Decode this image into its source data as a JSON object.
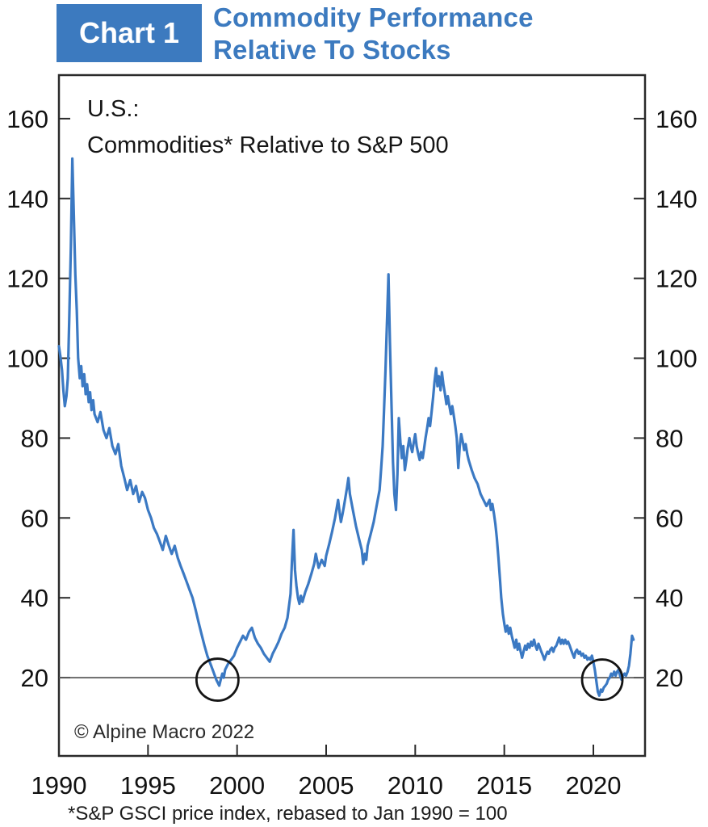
{
  "header": {
    "chart_label": "Chart 1",
    "title_line1": "Commodity Performance",
    "title_line2": "Relative To Stocks"
  },
  "chart": {
    "subtitle_line1": "U.S.:",
    "subtitle_line2": "Commodities* Relative to S&P 500",
    "copyright": "© Alpine Macro 2022",
    "footnote": "*S&P GSCI price index, rebased to Jan 1990 = 100"
  },
  "colors": {
    "accent_blue": "#3c7abf",
    "line_blue": "#3b79c3",
    "axis": "#2a2a2a",
    "reference_line": "#5a5a5a",
    "annotation_circle": "#141414"
  },
  "chart_data": {
    "type": "line",
    "title": "U.S.: Commodities* Relative to S&P 500",
    "xlabel": "",
    "ylabel": "",
    "x_ticks": [
      1990,
      1995,
      2000,
      2005,
      2010,
      2015,
      2020
    ],
    "y_ticks": [
      20,
      40,
      60,
      80,
      100,
      120,
      140,
      160
    ],
    "x_range": [
      1990,
      2022.9
    ],
    "y_range": [
      0.4,
      170.9
    ],
    "grid": "off",
    "reference_line_y": 20,
    "annotations": [
      {
        "shape": "circle",
        "x": 1998.9,
        "y": 19.5,
        "radius_px": 26,
        "label": "late-1990s low"
      },
      {
        "shape": "circle",
        "x": 2020.5,
        "y": 19.5,
        "radius_px": 25,
        "label": "2020-21 low"
      }
    ],
    "series": [
      {
        "name": "S&P GSCI price index relative to S&P 500 (Jan 1990 = 100)",
        "points": [
          [
            1990.0,
            103
          ],
          [
            1990.08,
            100.5
          ],
          [
            1990.17,
            97
          ],
          [
            1990.25,
            92
          ],
          [
            1990.33,
            88
          ],
          [
            1990.42,
            90.5
          ],
          [
            1990.5,
            95
          ],
          [
            1990.58,
            110
          ],
          [
            1990.67,
            128
          ],
          [
            1990.75,
            150
          ],
          [
            1990.83,
            137
          ],
          [
            1990.92,
            121
          ],
          [
            1991.0,
            112
          ],
          [
            1991.08,
            100
          ],
          [
            1991.17,
            95
          ],
          [
            1991.25,
            98
          ],
          [
            1991.33,
            93
          ],
          [
            1991.42,
            96
          ],
          [
            1991.5,
            91
          ],
          [
            1991.58,
            93.5
          ],
          [
            1991.67,
            89
          ],
          [
            1991.75,
            91.5
          ],
          [
            1991.83,
            87
          ],
          [
            1991.92,
            89.5
          ],
          [
            1992.0,
            86
          ],
          [
            1992.17,
            84
          ],
          [
            1992.33,
            86.5
          ],
          [
            1992.5,
            82
          ],
          [
            1992.67,
            80
          ],
          [
            1992.83,
            82.5
          ],
          [
            1993.0,
            78
          ],
          [
            1993.17,
            76
          ],
          [
            1993.33,
            78.5
          ],
          [
            1993.5,
            73
          ],
          [
            1993.67,
            70
          ],
          [
            1993.83,
            67
          ],
          [
            1994.0,
            69.5
          ],
          [
            1994.17,
            66
          ],
          [
            1994.33,
            68
          ],
          [
            1994.5,
            64
          ],
          [
            1994.67,
            66.5
          ],
          [
            1994.83,
            65
          ],
          [
            1995.0,
            62
          ],
          [
            1995.17,
            60
          ],
          [
            1995.33,
            57.5
          ],
          [
            1995.5,
            56
          ],
          [
            1995.67,
            54
          ],
          [
            1995.83,
            52
          ],
          [
            1996.0,
            55.5
          ],
          [
            1996.17,
            53
          ],
          [
            1996.33,
            51
          ],
          [
            1996.5,
            53
          ],
          [
            1996.67,
            50
          ],
          [
            1996.83,
            48
          ],
          [
            1997.0,
            46
          ],
          [
            1997.17,
            44
          ],
          [
            1997.33,
            42
          ],
          [
            1997.5,
            40
          ],
          [
            1997.67,
            37
          ],
          [
            1997.83,
            34
          ],
          [
            1998.0,
            31
          ],
          [
            1998.17,
            28
          ],
          [
            1998.33,
            25.5
          ],
          [
            1998.5,
            23.5
          ],
          [
            1998.67,
            21.5
          ],
          [
            1998.83,
            19.5
          ],
          [
            1999.0,
            18
          ],
          [
            1999.08,
            19.5
          ],
          [
            1999.17,
            21
          ],
          [
            1999.25,
            20
          ],
          [
            1999.33,
            22
          ],
          [
            1999.5,
            23.5
          ],
          [
            1999.67,
            24.5
          ],
          [
            1999.83,
            25.5
          ],
          [
            2000.0,
            27.5
          ],
          [
            2000.17,
            29
          ],
          [
            2000.33,
            30.5
          ],
          [
            2000.5,
            29.5
          ],
          [
            2000.67,
            31.5
          ],
          [
            2000.83,
            32.5
          ],
          [
            2001.0,
            30
          ],
          [
            2001.17,
            28.5
          ],
          [
            2001.33,
            27.5
          ],
          [
            2001.5,
            26
          ],
          [
            2001.67,
            25
          ],
          [
            2001.83,
            24
          ],
          [
            2002.0,
            26
          ],
          [
            2002.17,
            27.5
          ],
          [
            2002.33,
            29
          ],
          [
            2002.5,
            31
          ],
          [
            2002.67,
            32.5
          ],
          [
            2002.83,
            35
          ],
          [
            2003.0,
            41
          ],
          [
            2003.08,
            49
          ],
          [
            2003.17,
            57
          ],
          [
            2003.25,
            47
          ],
          [
            2003.33,
            43
          ],
          [
            2003.42,
            40
          ],
          [
            2003.5,
            38.5
          ],
          [
            2003.58,
            40.5
          ],
          [
            2003.67,
            39
          ],
          [
            2003.83,
            41.5
          ],
          [
            2004.0,
            43.5
          ],
          [
            2004.17,
            46
          ],
          [
            2004.33,
            48.5
          ],
          [
            2004.42,
            51
          ],
          [
            2004.58,
            47.5
          ],
          [
            2004.75,
            49.5
          ],
          [
            2004.92,
            48
          ],
          [
            2005.0,
            50.5
          ],
          [
            2005.17,
            53.5
          ],
          [
            2005.33,
            56.5
          ],
          [
            2005.5,
            60
          ],
          [
            2005.67,
            64.5
          ],
          [
            2005.75,
            61.5
          ],
          [
            2005.83,
            59
          ],
          [
            2005.92,
            61
          ],
          [
            2006.0,
            63
          ],
          [
            2006.17,
            67.5
          ],
          [
            2006.25,
            70
          ],
          [
            2006.33,
            66
          ],
          [
            2006.5,
            62
          ],
          [
            2006.67,
            58
          ],
          [
            2006.83,
            55
          ],
          [
            2007.0,
            52
          ],
          [
            2007.08,
            48.5
          ],
          [
            2007.17,
            51
          ],
          [
            2007.25,
            49.5
          ],
          [
            2007.33,
            53
          ],
          [
            2007.5,
            56
          ],
          [
            2007.67,
            59
          ],
          [
            2007.83,
            63
          ],
          [
            2008.0,
            67
          ],
          [
            2008.08,
            72
          ],
          [
            2008.17,
            78
          ],
          [
            2008.25,
            87
          ],
          [
            2008.33,
            97
          ],
          [
            2008.42,
            110
          ],
          [
            2008.5,
            121
          ],
          [
            2008.58,
            104
          ],
          [
            2008.67,
            88
          ],
          [
            2008.75,
            74
          ],
          [
            2008.83,
            66
          ],
          [
            2008.92,
            62
          ],
          [
            2009.0,
            71
          ],
          [
            2009.08,
            85
          ],
          [
            2009.17,
            79
          ],
          [
            2009.25,
            75
          ],
          [
            2009.33,
            78
          ],
          [
            2009.42,
            72
          ],
          [
            2009.5,
            74.5
          ],
          [
            2009.58,
            77.5
          ],
          [
            2009.67,
            80
          ],
          [
            2009.75,
            78
          ],
          [
            2009.83,
            76.5
          ],
          [
            2009.92,
            79
          ],
          [
            2010.0,
            81
          ],
          [
            2010.08,
            78
          ],
          [
            2010.17,
            76
          ],
          [
            2010.25,
            74.5
          ],
          [
            2010.33,
            76.5
          ],
          [
            2010.42,
            75
          ],
          [
            2010.5,
            77.5
          ],
          [
            2010.58,
            80
          ],
          [
            2010.67,
            82.5
          ],
          [
            2010.75,
            85
          ],
          [
            2010.83,
            83
          ],
          [
            2010.92,
            86.5
          ],
          [
            2011.0,
            90
          ],
          [
            2011.08,
            94
          ],
          [
            2011.17,
            97.5
          ],
          [
            2011.25,
            93
          ],
          [
            2011.33,
            95.5
          ],
          [
            2011.42,
            92
          ],
          [
            2011.5,
            96.5
          ],
          [
            2011.58,
            93.5
          ],
          [
            2011.67,
            91
          ],
          [
            2011.75,
            88.5
          ],
          [
            2011.83,
            90.5
          ],
          [
            2011.92,
            88
          ],
          [
            2012.0,
            86
          ],
          [
            2012.08,
            88
          ],
          [
            2012.17,
            85.5
          ],
          [
            2012.25,
            83
          ],
          [
            2012.33,
            80
          ],
          [
            2012.42,
            72.5
          ],
          [
            2012.5,
            78
          ],
          [
            2012.58,
            81
          ],
          [
            2012.67,
            79
          ],
          [
            2012.75,
            77
          ],
          [
            2012.83,
            78.5
          ],
          [
            2012.92,
            76
          ],
          [
            2013.0,
            74.5
          ],
          [
            2013.17,
            72
          ],
          [
            2013.33,
            70
          ],
          [
            2013.5,
            68.5
          ],
          [
            2013.67,
            66
          ],
          [
            2013.83,
            64.5
          ],
          [
            2014.0,
            63
          ],
          [
            2014.17,
            64.5
          ],
          [
            2014.25,
            62
          ],
          [
            2014.33,
            63.5
          ],
          [
            2014.42,
            61
          ],
          [
            2014.5,
            58.5
          ],
          [
            2014.58,
            55
          ],
          [
            2014.67,
            50
          ],
          [
            2014.75,
            45
          ],
          [
            2014.83,
            40
          ],
          [
            2014.92,
            36
          ],
          [
            2015.0,
            33.5
          ],
          [
            2015.08,
            31.5
          ],
          [
            2015.17,
            33
          ],
          [
            2015.25,
            31
          ],
          [
            2015.33,
            32.5
          ],
          [
            2015.42,
            30.5
          ],
          [
            2015.5,
            29
          ],
          [
            2015.58,
            27.5
          ],
          [
            2015.67,
            29.5
          ],
          [
            2015.75,
            27
          ],
          [
            2015.83,
            28.5
          ],
          [
            2015.92,
            26.5
          ],
          [
            2016.0,
            25
          ],
          [
            2016.08,
            26.5
          ],
          [
            2016.17,
            28
          ],
          [
            2016.25,
            27
          ],
          [
            2016.33,
            28.5
          ],
          [
            2016.42,
            27.5
          ],
          [
            2016.5,
            29
          ],
          [
            2016.58,
            28
          ],
          [
            2016.67,
            29.5
          ],
          [
            2016.75,
            28
          ],
          [
            2016.83,
            27
          ],
          [
            2016.92,
            28.5
          ],
          [
            2017.0,
            27.5
          ],
          [
            2017.08,
            26.5
          ],
          [
            2017.17,
            25.5
          ],
          [
            2017.25,
            24.5
          ],
          [
            2017.33,
            25.5
          ],
          [
            2017.42,
            26.5
          ],
          [
            2017.5,
            26
          ],
          [
            2017.58,
            27
          ],
          [
            2017.67,
            27.5
          ],
          [
            2017.75,
            26.5
          ],
          [
            2017.83,
            27.5
          ],
          [
            2017.92,
            28
          ],
          [
            2018.0,
            29
          ],
          [
            2018.08,
            30
          ],
          [
            2018.17,
            28.5
          ],
          [
            2018.25,
            29.5
          ],
          [
            2018.33,
            28.5
          ],
          [
            2018.42,
            29.5
          ],
          [
            2018.5,
            28.5
          ],
          [
            2018.58,
            29
          ],
          [
            2018.67,
            28
          ],
          [
            2018.75,
            27
          ],
          [
            2018.83,
            26
          ],
          [
            2018.92,
            25
          ],
          [
            2019.0,
            26.5
          ],
          [
            2019.08,
            27
          ],
          [
            2019.17,
            26
          ],
          [
            2019.25,
            26.5
          ],
          [
            2019.33,
            25.5
          ],
          [
            2019.42,
            26
          ],
          [
            2019.5,
            25
          ],
          [
            2019.58,
            25.5
          ],
          [
            2019.67,
            24.5
          ],
          [
            2019.75,
            25
          ],
          [
            2019.83,
            24.5
          ],
          [
            2019.92,
            25.5
          ],
          [
            2020.0,
            24
          ],
          [
            2020.08,
            22
          ],
          [
            2020.17,
            19
          ],
          [
            2020.25,
            16.5
          ],
          [
            2020.33,
            15.5
          ],
          [
            2020.42,
            17
          ],
          [
            2020.5,
            16.5
          ],
          [
            2020.58,
            17.5
          ],
          [
            2020.67,
            18
          ],
          [
            2020.75,
            18.5
          ],
          [
            2020.83,
            19.5
          ],
          [
            2020.92,
            20
          ],
          [
            2021.0,
            21
          ],
          [
            2021.08,
            20.5
          ],
          [
            2021.17,
            21.5
          ],
          [
            2021.25,
            20.5
          ],
          [
            2021.33,
            21.5
          ],
          [
            2021.42,
            22
          ],
          [
            2021.5,
            20.5
          ],
          [
            2021.58,
            19.5
          ],
          [
            2021.67,
            20.5
          ],
          [
            2021.75,
            21
          ],
          [
            2021.83,
            20.5
          ],
          [
            2021.92,
            21.5
          ],
          [
            2022.0,
            23
          ],
          [
            2022.08,
            26
          ],
          [
            2022.17,
            30.5
          ],
          [
            2022.25,
            29.5
          ]
        ]
      }
    ]
  }
}
